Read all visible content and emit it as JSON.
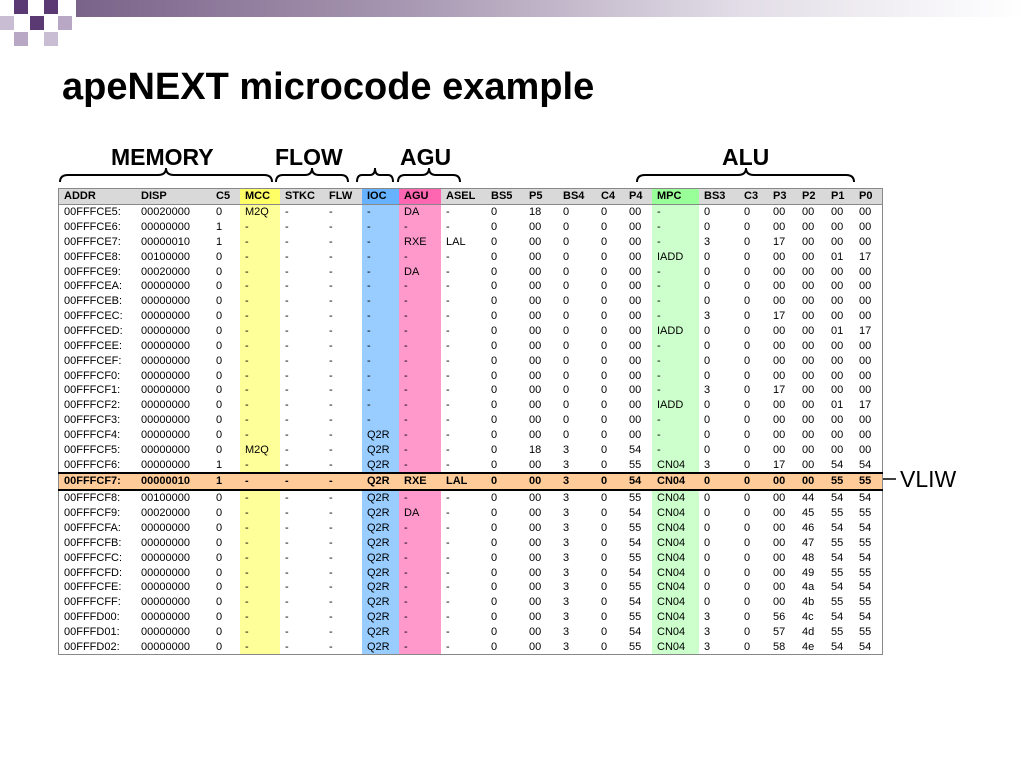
{
  "slide": {
    "title": "apeNEXT microcode example",
    "groups": {
      "memory": "MEMORY",
      "flow": "FLOW",
      "agu": "AGU",
      "alu": "ALU"
    },
    "vliw_label": "VLIW"
  },
  "table": {
    "headers": [
      "ADDR",
      "DISP",
      "C5",
      "MCC",
      "STKC",
      "FLW",
      "IOC",
      "AGU",
      "ASEL",
      "BS5",
      "P5",
      "BS4",
      "C4",
      "P4",
      "MPC",
      "BS3",
      "C3",
      "P3",
      "P2",
      "P1",
      "P0"
    ],
    "highlight_row": 18,
    "rows": [
      [
        "00FFFCE5:",
        "00020000",
        "0",
        "M2Q",
        "-",
        "-",
        "-",
        "DA",
        "-",
        "0",
        "18",
        "0",
        "0",
        "00",
        "-",
        "0",
        "0",
        "00",
        "00",
        "00",
        "00"
      ],
      [
        "00FFFCE6:",
        "00000000",
        "1",
        "-",
        "-",
        "-",
        "-",
        "-",
        "-",
        "0",
        "00",
        "0",
        "0",
        "00",
        "-",
        "0",
        "0",
        "00",
        "00",
        "00",
        "00"
      ],
      [
        "00FFFCE7:",
        "00000010",
        "1",
        "-",
        "-",
        "-",
        "-",
        "RXE",
        "LAL",
        "0",
        "00",
        "0",
        "0",
        "00",
        "-",
        "3",
        "0",
        "17",
        "00",
        "00",
        "00"
      ],
      [
        "00FFFCE8:",
        "00100000",
        "0",
        "-",
        "-",
        "-",
        "-",
        "-",
        "-",
        "0",
        "00",
        "0",
        "0",
        "00",
        "IADD",
        "0",
        "0",
        "00",
        "00",
        "01",
        "17"
      ],
      [
        "00FFFCE9:",
        "00020000",
        "0",
        "-",
        "-",
        "-",
        "-",
        "DA",
        "-",
        "0",
        "00",
        "0",
        "0",
        "00",
        "-",
        "0",
        "0",
        "00",
        "00",
        "00",
        "00"
      ],
      [
        "00FFFCEA:",
        "00000000",
        "0",
        "-",
        "-",
        "-",
        "-",
        "-",
        "-",
        "0",
        "00",
        "0",
        "0",
        "00",
        "-",
        "0",
        "0",
        "00",
        "00",
        "00",
        "00"
      ],
      [
        "00FFFCEB:",
        "00000000",
        "0",
        "-",
        "-",
        "-",
        "-",
        "-",
        "-",
        "0",
        "00",
        "0",
        "0",
        "00",
        "-",
        "0",
        "0",
        "00",
        "00",
        "00",
        "00"
      ],
      [
        "00FFFCEC:",
        "00000000",
        "0",
        "-",
        "-",
        "-",
        "-",
        "-",
        "-",
        "0",
        "00",
        "0",
        "0",
        "00",
        "-",
        "3",
        "0",
        "17",
        "00",
        "00",
        "00"
      ],
      [
        "00FFFCED:",
        "00000000",
        "0",
        "-",
        "-",
        "-",
        "-",
        "-",
        "-",
        "0",
        "00",
        "0",
        "0",
        "00",
        "IADD",
        "0",
        "0",
        "00",
        "00",
        "01",
        "17"
      ],
      [
        "00FFFCEE:",
        "00000000",
        "0",
        "-",
        "-",
        "-",
        "-",
        "-",
        "-",
        "0",
        "00",
        "0",
        "0",
        "00",
        "-",
        "0",
        "0",
        "00",
        "00",
        "00",
        "00"
      ],
      [
        "00FFFCEF:",
        "00000000",
        "0",
        "-",
        "-",
        "-",
        "-",
        "-",
        "-",
        "0",
        "00",
        "0",
        "0",
        "00",
        "-",
        "0",
        "0",
        "00",
        "00",
        "00",
        "00"
      ],
      [
        "00FFFCF0:",
        "00000000",
        "0",
        "-",
        "-",
        "-",
        "-",
        "-",
        "-",
        "0",
        "00",
        "0",
        "0",
        "00",
        "-",
        "0",
        "0",
        "00",
        "00",
        "00",
        "00"
      ],
      [
        "00FFFCF1:",
        "00000000",
        "0",
        "-",
        "-",
        "-",
        "-",
        "-",
        "-",
        "0",
        "00",
        "0",
        "0",
        "00",
        "-",
        "3",
        "0",
        "17",
        "00",
        "00",
        "00"
      ],
      [
        "00FFFCF2:",
        "00000000",
        "0",
        "-",
        "-",
        "-",
        "-",
        "-",
        "-",
        "0",
        "00",
        "0",
        "0",
        "00",
        "IADD",
        "0",
        "0",
        "00",
        "00",
        "01",
        "17"
      ],
      [
        "00FFFCF3:",
        "00000000",
        "0",
        "-",
        "-",
        "-",
        "-",
        "-",
        "-",
        "0",
        "00",
        "0",
        "0",
        "00",
        "-",
        "0",
        "0",
        "00",
        "00",
        "00",
        "00"
      ],
      [
        "00FFFCF4:",
        "00000000",
        "0",
        "-",
        "-",
        "-",
        "Q2R",
        "-",
        "-",
        "0",
        "00",
        "0",
        "0",
        "00",
        "-",
        "0",
        "0",
        "00",
        "00",
        "00",
        "00"
      ],
      [
        "00FFFCF5:",
        "00000000",
        "0",
        "M2Q",
        "-",
        "-",
        "Q2R",
        "-",
        "-",
        "0",
        "18",
        "3",
        "0",
        "54",
        "-",
        "0",
        "0",
        "00",
        "00",
        "00",
        "00"
      ],
      [
        "00FFFCF6:",
        "00000000",
        "1",
        "-",
        "-",
        "-",
        "Q2R",
        "-",
        "-",
        "0",
        "00",
        "3",
        "0",
        "55",
        "CN04",
        "3",
        "0",
        "17",
        "00",
        "54",
        "54"
      ],
      [
        "00FFFCF7:",
        "00000010",
        "1",
        "-",
        "-",
        "-",
        "Q2R",
        "RXE",
        "LAL",
        "0",
        "00",
        "3",
        "0",
        "54",
        "CN04",
        "0",
        "0",
        "00",
        "00",
        "55",
        "55"
      ],
      [
        "00FFFCF8:",
        "00100000",
        "0",
        "-",
        "-",
        "-",
        "Q2R",
        "-",
        "-",
        "0",
        "00",
        "3",
        "0",
        "55",
        "CN04",
        "0",
        "0",
        "00",
        "44",
        "54",
        "54"
      ],
      [
        "00FFFCF9:",
        "00020000",
        "0",
        "-",
        "-",
        "-",
        "Q2R",
        "DA",
        "-",
        "0",
        "00",
        "3",
        "0",
        "54",
        "CN04",
        "0",
        "0",
        "00",
        "45",
        "55",
        "55"
      ],
      [
        "00FFFCFA:",
        "00000000",
        "0",
        "-",
        "-",
        "-",
        "Q2R",
        "-",
        "-",
        "0",
        "00",
        "3",
        "0",
        "55",
        "CN04",
        "0",
        "0",
        "00",
        "46",
        "54",
        "54"
      ],
      [
        "00FFFCFB:",
        "00000000",
        "0",
        "-",
        "-",
        "-",
        "Q2R",
        "-",
        "-",
        "0",
        "00",
        "3",
        "0",
        "54",
        "CN04",
        "0",
        "0",
        "00",
        "47",
        "55",
        "55"
      ],
      [
        "00FFFCFC:",
        "00000000",
        "0",
        "-",
        "-",
        "-",
        "Q2R",
        "-",
        "-",
        "0",
        "00",
        "3",
        "0",
        "55",
        "CN04",
        "0",
        "0",
        "00",
        "48",
        "54",
        "54"
      ],
      [
        "00FFFCFD:",
        "00000000",
        "0",
        "-",
        "-",
        "-",
        "Q2R",
        "-",
        "-",
        "0",
        "00",
        "3",
        "0",
        "54",
        "CN04",
        "0",
        "0",
        "00",
        "49",
        "55",
        "55"
      ],
      [
        "00FFFCFE:",
        "00000000",
        "0",
        "-",
        "-",
        "-",
        "Q2R",
        "-",
        "-",
        "0",
        "00",
        "3",
        "0",
        "55",
        "CN04",
        "0",
        "0",
        "00",
        "4a",
        "54",
        "54"
      ],
      [
        "00FFFCFF:",
        "00000000",
        "0",
        "-",
        "-",
        "-",
        "Q2R",
        "-",
        "-",
        "0",
        "00",
        "3",
        "0",
        "54",
        "CN04",
        "0",
        "0",
        "00",
        "4b",
        "55",
        "55"
      ],
      [
        "00FFFD00:",
        "00000000",
        "0",
        "-",
        "-",
        "-",
        "Q2R",
        "-",
        "-",
        "0",
        "00",
        "3",
        "0",
        "55",
        "CN04",
        "3",
        "0",
        "56",
        "4c",
        "54",
        "54"
      ],
      [
        "00FFFD01:",
        "00000000",
        "0",
        "-",
        "-",
        "-",
        "Q2R",
        "-",
        "-",
        "0",
        "00",
        "3",
        "0",
        "54",
        "CN04",
        "3",
        "0",
        "57",
        "4d",
        "55",
        "55"
      ],
      [
        "00FFFD02:",
        "00000000",
        "0",
        "-",
        "-",
        "-",
        "Q2R",
        "-",
        "-",
        "0",
        "00",
        "3",
        "0",
        "55",
        "CN04",
        "3",
        "0",
        "58",
        "4e",
        "54",
        "54"
      ]
    ]
  },
  "colors": {
    "mcc": "#ffff99",
    "ioc": "#99ccff",
    "agu": "#ff99cc",
    "mpc": "#ccffcc",
    "highlight": "#ffcc99",
    "accent": "#5b3a73"
  }
}
